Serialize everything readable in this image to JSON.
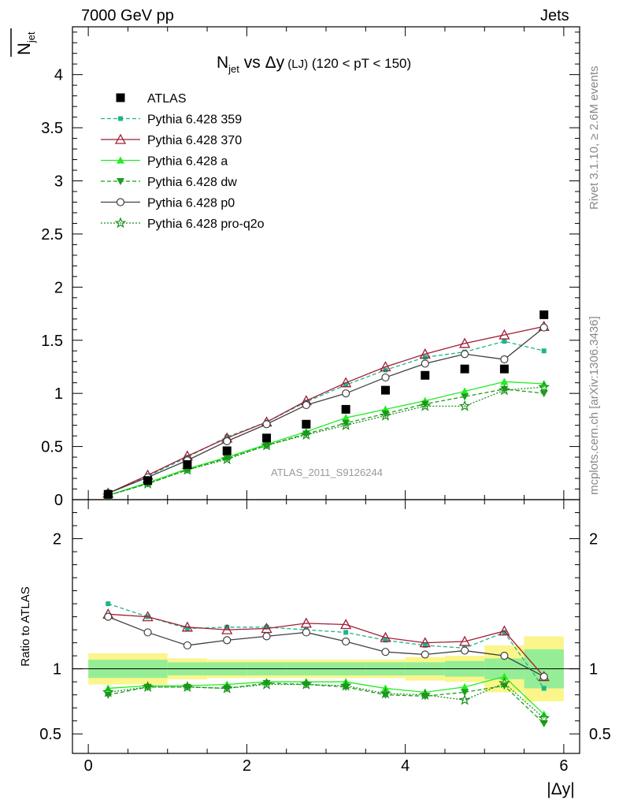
{
  "header": {
    "energy_label": "7000 GeV pp",
    "category_label": "Jets"
  },
  "side_notes": {
    "rivet": "Rivet 3.1.10, ≥ 2.6M events",
    "mcplots": "mcplots.cern.ch [arXiv:1306.3436]"
  },
  "chart_data": [
    {
      "type": "scatter",
      "title_main": "N",
      "title_sub": "jet",
      "title_mid": " vs Δy",
      "title_small": " (LJ)",
      "title_rest": " (120 < pT < 150)",
      "ylabel_main": "N",
      "ylabel_sub": "jet",
      "watermark": "ATLAS_2011_S9126244",
      "xlim": [
        -0.2,
        6.2
      ],
      "ylim": [
        0,
        4.45
      ],
      "x": [
        0.25,
        0.75,
        1.25,
        1.75,
        2.25,
        2.75,
        3.25,
        3.75,
        4.25,
        4.75,
        5.25,
        5.75
      ],
      "yticks": [
        "0",
        "0.5",
        "1",
        "1.5",
        "2",
        "2.5",
        "3",
        "3.5",
        "4"
      ],
      "series": [
        {
          "name": "ATLAS",
          "color": "#000000",
          "marker": "square",
          "line": "none",
          "values": [
            0.05,
            0.18,
            0.33,
            0.46,
            0.58,
            0.71,
            0.85,
            1.03,
            1.17,
            1.23,
            1.23,
            1.74
          ]
        },
        {
          "name": "Pythia 6.428 359",
          "color": "#1fb38a",
          "marker": "smallsquare",
          "line": "dashed",
          "values": [
            0.06,
            0.22,
            0.4,
            0.59,
            0.73,
            0.92,
            1.08,
            1.22,
            1.34,
            1.39,
            1.49,
            1.4
          ]
        },
        {
          "name": "Pythia 6.428 370",
          "color": "#a01e35",
          "marker": "triangle-open",
          "line": "solid",
          "values": [
            0.06,
            0.23,
            0.41,
            0.58,
            0.73,
            0.93,
            1.1,
            1.25,
            1.37,
            1.47,
            1.55,
            1.63
          ]
        },
        {
          "name": "Pythia 6.428 a",
          "color": "#22ee22",
          "marker": "triangle",
          "line": "solid",
          "values": [
            0.04,
            0.16,
            0.29,
            0.4,
            0.52,
            0.64,
            0.77,
            0.85,
            0.93,
            1.02,
            1.11,
            1.09
          ]
        },
        {
          "name": "Pythia 6.428 dw",
          "color": "#1a9f1a",
          "marker": "triangle-down",
          "line": "dashed",
          "values": [
            0.04,
            0.15,
            0.28,
            0.39,
            0.51,
            0.62,
            0.72,
            0.81,
            0.9,
            0.97,
            1.04,
            1.0
          ]
        },
        {
          "name": "Pythia 6.428 p0",
          "color": "#404040",
          "marker": "circle-open",
          "line": "solid",
          "values": [
            0.06,
            0.21,
            0.37,
            0.55,
            0.71,
            0.89,
            1.0,
            1.15,
            1.28,
            1.37,
            1.32,
            1.62
          ]
        },
        {
          "name": "Pythia 6.428 pro-q2o",
          "color": "#1a8f1a",
          "marker": "star",
          "line": "dotted",
          "values": [
            0.04,
            0.15,
            0.28,
            0.38,
            0.51,
            0.61,
            0.7,
            0.79,
            0.88,
            0.88,
            1.03,
            1.06
          ]
        }
      ]
    },
    {
      "type": "line",
      "ylabel": "Ratio to ATLAS",
      "xlabel": "|Δy|",
      "xlim": [
        -0.2,
        6.2
      ],
      "ylim": [
        0.35,
        2.3
      ],
      "xticks": [
        "0",
        "2",
        "4",
        "6"
      ],
      "yticks": [
        "0.5",
        "1",
        "2"
      ],
      "band_inner": [
        0.07,
        0.07,
        0.05,
        0.05,
        0.05,
        0.05,
        0.05,
        0.05,
        0.05,
        0.06,
        0.08,
        0.15
      ],
      "band_outer": [
        0.12,
        0.12,
        0.08,
        0.07,
        0.07,
        0.07,
        0.07,
        0.07,
        0.09,
        0.1,
        0.18,
        0.25
      ],
      "series": [
        {
          "name": "Pythia 6.428 359",
          "values": [
            1.5,
            1.4,
            1.31,
            1.32,
            1.32,
            1.3,
            1.28,
            1.22,
            1.18,
            1.16,
            1.28,
            0.85
          ]
        },
        {
          "name": "Pythia 6.428 370",
          "values": [
            1.42,
            1.4,
            1.32,
            1.3,
            1.31,
            1.35,
            1.34,
            1.24,
            1.2,
            1.21,
            1.29,
            0.94
          ]
        },
        {
          "name": "Pythia 6.428 a",
          "values": [
            0.85,
            0.87,
            0.87,
            0.88,
            0.9,
            0.9,
            0.9,
            0.85,
            0.82,
            0.86,
            0.94,
            0.65
          ]
        },
        {
          "name": "Pythia 6.428 dw",
          "values": [
            0.8,
            0.86,
            0.86,
            0.85,
            0.89,
            0.88,
            0.86,
            0.8,
            0.79,
            0.82,
            0.87,
            0.58
          ]
        },
        {
          "name": "Pythia 6.428 p0",
          "values": [
            1.4,
            1.28,
            1.18,
            1.22,
            1.25,
            1.28,
            1.21,
            1.13,
            1.11,
            1.14,
            1.1,
            0.94
          ]
        },
        {
          "name": "Pythia 6.428 pro-q2o",
          "values": [
            0.82,
            0.86,
            0.86,
            0.85,
            0.88,
            0.88,
            0.87,
            0.81,
            0.8,
            0.76,
            0.89,
            0.62
          ]
        }
      ]
    }
  ]
}
